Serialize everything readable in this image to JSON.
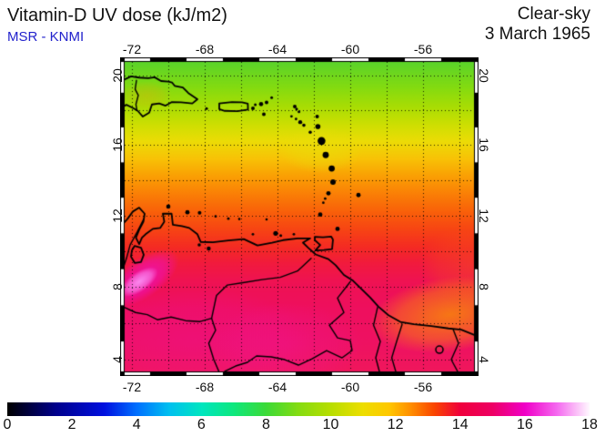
{
  "header": {
    "title": "Vitamin-D UV dose (kJ/m2)",
    "source": "MSR - KNMI",
    "source_color": "#2222cc",
    "condition": "Clear-sky",
    "date": "3 March 1965"
  },
  "map": {
    "lon_min": -72.4,
    "lon_max": -53.2,
    "lat_min": 3.35,
    "lat_max": 20.8,
    "grid_step": 2,
    "grid_color": "#000000",
    "lon_ticks": [
      {
        "lon": -72,
        "label": "-72"
      },
      {
        "lon": -68,
        "label": "-68"
      },
      {
        "lon": -64,
        "label": "-64"
      },
      {
        "lon": -60,
        "label": "-60"
      },
      {
        "lon": -56,
        "label": "-56"
      }
    ],
    "lat_ticks": [
      {
        "lat": 20,
        "label": "20"
      },
      {
        "lat": 16,
        "label": "16"
      },
      {
        "lat": 12,
        "label": "12"
      },
      {
        "lat": 8,
        "label": "8"
      },
      {
        "lat": 4,
        "label": "4"
      }
    ],
    "base_gradient": [
      {
        "lat": 20.8,
        "color": "#5ad32a"
      },
      {
        "lat": 19.3,
        "color": "#84db10"
      },
      {
        "lat": 18.2,
        "color": "#a8dd04"
      },
      {
        "lat": 17.2,
        "color": "#ccdf02"
      },
      {
        "lat": 16.2,
        "color": "#ecdc06"
      },
      {
        "lat": 15.2,
        "color": "#f8c206"
      },
      {
        "lat": 14.2,
        "color": "#fa9f04"
      },
      {
        "lat": 13.2,
        "color": "#fa7f06"
      },
      {
        "lat": 12.2,
        "color": "#f9600a"
      },
      {
        "lat": 11.2,
        "color": "#f74414"
      },
      {
        "lat": 10.2,
        "color": "#f42a24"
      },
      {
        "lat": 9.3,
        "color": "#f11a3e"
      },
      {
        "lat": 8.3,
        "color": "#ef1253"
      },
      {
        "lat": 6.8,
        "color": "#ee0f5e"
      },
      {
        "lat": 5.0,
        "color": "#ee1162"
      },
      {
        "lat": 3.35,
        "color": "#f0175c"
      }
    ],
    "anomalies": [
      {
        "lon": -54.5,
        "lat": 6.5,
        "rx": 4.5,
        "ry": 2.1,
        "tilt": -8,
        "color": "#f8820d",
        "alpha": 0.9
      },
      {
        "lon": -53.4,
        "lat": 9.2,
        "rx": 2.8,
        "ry": 2.2,
        "tilt": 0,
        "color": "#f86014",
        "alpha": 0.35
      },
      {
        "lon": -68.5,
        "lat": 5.0,
        "rx": 6.5,
        "ry": 3.0,
        "tilt": 0,
        "color": "#ef1194",
        "alpha": 0.4
      },
      {
        "lon": -63.5,
        "lat": 4.8,
        "rx": 4.2,
        "ry": 2.4,
        "tilt": 0,
        "color": "#f11595",
        "alpha": 0.4
      },
      {
        "lon": -71.4,
        "lat": 8.5,
        "rx": 2.3,
        "ry": 1.1,
        "tilt": -35,
        "color": "#ef10c0",
        "alpha": 0.85
      },
      {
        "lon": -71.6,
        "lat": 8.3,
        "rx": 1.2,
        "ry": 0.55,
        "tilt": -35,
        "color": "#fb90f2",
        "alpha": 0.95
      },
      {
        "lon": -61.6,
        "lat": 15.7,
        "rx": 2.3,
        "ry": 1.3,
        "tilt": 0,
        "color": "#e9e009",
        "alpha": 0.5
      },
      {
        "lon": -71.2,
        "lat": 18.85,
        "rx": 1.4,
        "ry": 0.8,
        "tilt": 0,
        "color": "#f0a30a",
        "alpha": 0.3
      }
    ],
    "coastlines": [
      {
        "name": "hispaniola",
        "closed": false,
        "points": [
          [
            -72.45,
            19.75
          ],
          [
            -72.05,
            19.95
          ],
          [
            -71.6,
            19.88
          ],
          [
            -71.1,
            19.85
          ],
          [
            -70.75,
            19.9
          ],
          [
            -70.4,
            19.68
          ],
          [
            -70.0,
            19.65
          ],
          [
            -69.8,
            19.6
          ],
          [
            -69.65,
            19.4
          ],
          [
            -69.2,
            19.3
          ],
          [
            -68.9,
            18.98
          ],
          [
            -68.4,
            18.62
          ],
          [
            -68.68,
            18.38
          ],
          [
            -69.3,
            18.44
          ],
          [
            -69.8,
            18.46
          ],
          [
            -70.15,
            18.25
          ],
          [
            -70.5,
            18.38
          ],
          [
            -70.9,
            18.32
          ],
          [
            -71.05,
            17.85
          ],
          [
            -71.4,
            17.62
          ],
          [
            -71.68,
            17.95
          ],
          [
            -71.95,
            18.12
          ],
          [
            -72.3,
            18.3
          ],
          [
            -72.45,
            18.22
          ]
        ]
      },
      {
        "name": "puerto-rico",
        "closed": true,
        "points": [
          [
            -67.2,
            18.38
          ],
          [
            -66.5,
            18.46
          ],
          [
            -65.95,
            18.44
          ],
          [
            -65.63,
            18.36
          ],
          [
            -65.62,
            18.02
          ],
          [
            -66.2,
            17.93
          ],
          [
            -66.9,
            17.95
          ],
          [
            -67.2,
            18.05
          ]
        ]
      },
      {
        "name": "trinidad",
        "closed": true,
        "points": [
          [
            -61.95,
            10.8
          ],
          [
            -61.5,
            10.78
          ],
          [
            -61.05,
            10.82
          ],
          [
            -60.95,
            10.65
          ],
          [
            -61.0,
            10.12
          ],
          [
            -61.45,
            10.07
          ],
          [
            -61.92,
            10.04
          ],
          [
            -61.65,
            10.35
          ],
          [
            -61.95,
            10.62
          ]
        ]
      },
      {
        "name": "south-america",
        "closed": false,
        "points": [
          [
            -72.45,
            11.58
          ],
          [
            -72.25,
            11.8
          ],
          [
            -71.95,
            12.22
          ],
          [
            -71.6,
            12.44
          ],
          [
            -71.3,
            12.1
          ],
          [
            -71.37,
            11.65
          ],
          [
            -71.6,
            11.2
          ],
          [
            -71.78,
            10.75
          ],
          [
            -71.6,
            10.4
          ],
          [
            -71.45,
            10.75
          ],
          [
            -71.25,
            10.95
          ],
          [
            -70.85,
            11.25
          ],
          [
            -70.45,
            11.3
          ],
          [
            -70.22,
            11.65
          ],
          [
            -70.3,
            12.1
          ],
          [
            -69.82,
            12.1
          ],
          [
            -69.75,
            11.48
          ],
          [
            -69.25,
            11.4
          ],
          [
            -68.85,
            11.3
          ],
          [
            -68.4,
            10.95
          ],
          [
            -68.22,
            10.52
          ],
          [
            -67.55,
            10.5
          ],
          [
            -66.7,
            10.6
          ],
          [
            -65.85,
            10.68
          ],
          [
            -65.1,
            10.32
          ],
          [
            -64.3,
            10.48
          ],
          [
            -63.7,
            10.62
          ],
          [
            -62.9,
            10.72
          ],
          [
            -62.2,
            10.72
          ],
          [
            -62.6,
            10.48
          ],
          [
            -62.3,
            10.18
          ],
          [
            -61.9,
            9.82
          ],
          [
            -61.2,
            9.56
          ],
          [
            -60.8,
            9.22
          ],
          [
            -60.35,
            8.68
          ],
          [
            -59.85,
            8.36
          ],
          [
            -59.4,
            7.92
          ],
          [
            -58.9,
            7.42
          ],
          [
            -58.45,
            6.92
          ],
          [
            -57.9,
            6.45
          ],
          [
            -57.25,
            6.08
          ],
          [
            -56.5,
            5.95
          ],
          [
            -55.55,
            5.85
          ],
          [
            -54.6,
            5.72
          ],
          [
            -53.9,
            5.65
          ],
          [
            -53.15,
            5.35
          ]
        ]
      },
      {
        "name": "lake-maracaibo",
        "closed": true,
        "points": [
          [
            -71.85,
            10.3
          ],
          [
            -71.5,
            10.2
          ],
          [
            -71.35,
            9.8
          ],
          [
            -71.5,
            9.4
          ],
          [
            -71.85,
            9.35
          ],
          [
            -72.05,
            9.7
          ],
          [
            -72.0,
            10.05
          ]
        ]
      }
    ],
    "borders": [
      {
        "name": "haiti-dr-border",
        "points": [
          [
            -71.75,
            19.72
          ],
          [
            -71.82,
            19.2
          ],
          [
            -71.65,
            18.85
          ],
          [
            -71.78,
            18.32
          ],
          [
            -71.73,
            18.02
          ]
        ]
      },
      {
        "name": "colombia-venezuela-border",
        "points": [
          [
            -71.35,
            11.8
          ],
          [
            -71.7,
            11.1
          ],
          [
            -72.1,
            10.35
          ],
          [
            -72.3,
            9.6
          ],
          [
            -72.45,
            9.15
          ]
        ]
      },
      {
        "name": "meta-river-border",
        "points": [
          [
            -72.45,
            6.9
          ],
          [
            -71.8,
            6.6
          ],
          [
            -71.15,
            6.48
          ],
          [
            -70.6,
            6.2
          ],
          [
            -69.85,
            6.35
          ],
          [
            -69.05,
            6.15
          ],
          [
            -68.25,
            6.1
          ],
          [
            -67.62,
            6.28
          ],
          [
            -67.4,
            5.62
          ],
          [
            -67.78,
            4.9
          ],
          [
            -67.5,
            4.0
          ],
          [
            -67.2,
            3.3
          ]
        ]
      },
      {
        "name": "orinoco-river",
        "points": [
          [
            -62.15,
            9.6
          ],
          [
            -62.9,
            8.9
          ],
          [
            -63.85,
            8.55
          ],
          [
            -64.85,
            8.42
          ],
          [
            -65.9,
            8.25
          ],
          [
            -66.75,
            8.12
          ],
          [
            -67.35,
            7.55
          ],
          [
            -67.62,
            6.28
          ]
        ]
      },
      {
        "name": "venezuela-guyana-brazil-border",
        "points": [
          [
            -60.0,
            8.3
          ],
          [
            -60.7,
            7.4
          ],
          [
            -60.35,
            6.6
          ],
          [
            -61.15,
            5.9
          ],
          [
            -60.7,
            5.2
          ],
          [
            -60.0,
            5.05
          ],
          [
            -59.9,
            4.5
          ],
          [
            -60.45,
            4.1
          ],
          [
            -61.3,
            4.5
          ],
          [
            -62.1,
            4.05
          ],
          [
            -62.85,
            3.7
          ],
          [
            -63.6,
            4.0
          ],
          [
            -64.35,
            4.15
          ],
          [
            -65.15,
            4.2
          ],
          [
            -65.65,
            3.85
          ],
          [
            -66.3,
            3.65
          ],
          [
            -66.9,
            3.35
          ]
        ]
      },
      {
        "name": "essequibo",
        "points": [
          [
            -58.5,
            6.88
          ],
          [
            -58.72,
            5.9
          ],
          [
            -58.35,
            5.0
          ],
          [
            -58.6,
            4.1
          ],
          [
            -58.4,
            3.35
          ]
        ]
      },
      {
        "name": "corentyne",
        "points": [
          [
            -57.15,
            5.95
          ],
          [
            -57.45,
            5.0
          ],
          [
            -57.72,
            4.1
          ],
          [
            -57.5,
            3.35
          ]
        ]
      },
      {
        "name": "maroni",
        "points": [
          [
            -54.35,
            5.68
          ],
          [
            -54.05,
            4.9
          ],
          [
            -54.45,
            4.0
          ],
          [
            -54.1,
            3.35
          ]
        ]
      }
    ],
    "islands": [
      [
        -67.9,
        18.08,
        1.5
      ],
      [
        -65.35,
        18.1,
        2
      ],
      [
        -65.22,
        18.3,
        1.5
      ],
      [
        -64.9,
        18.34,
        2.3
      ],
      [
        -64.6,
        18.44,
        2
      ],
      [
        -64.32,
        18.72,
        1.5
      ],
      [
        -64.75,
        17.75,
        2
      ],
      [
        -63.05,
        18.2,
        2
      ],
      [
        -62.95,
        18.05,
        1.5
      ],
      [
        -62.82,
        17.9,
        1.5
      ],
      [
        -63.23,
        17.63,
        1.4
      ],
      [
        -62.98,
        17.48,
        1.4
      ],
      [
        -62.75,
        17.3,
        2.2
      ],
      [
        -62.55,
        17.12,
        1.8
      ],
      [
        -61.82,
        17.62,
        2
      ],
      [
        -61.78,
        17.05,
        2.8
      ],
      [
        -62.2,
        16.72,
        1.8
      ],
      [
        -61.58,
        16.22,
        4.3
      ],
      [
        -61.35,
        15.42,
        3.4
      ],
      [
        -61.02,
        14.65,
        3.4
      ],
      [
        -60.95,
        13.88,
        3
      ],
      [
        -61.2,
        13.25,
        2.4
      ],
      [
        -61.38,
        12.95,
        1.4
      ],
      [
        -61.48,
        12.72,
        1.4
      ],
      [
        -59.55,
        13.15,
        2.4
      ],
      [
        -61.65,
        12.05,
        2.4
      ],
      [
        -60.7,
        11.25,
        2.4
      ],
      [
        -70.0,
        12.5,
        2.3
      ],
      [
        -68.95,
        12.18,
        2.4
      ],
      [
        -68.28,
        12.15,
        2
      ],
      [
        -67.4,
        11.95,
        1.4
      ],
      [
        -66.7,
        11.82,
        1.4
      ],
      [
        -66.1,
        11.8,
        1.3
      ],
      [
        -65.35,
        10.95,
        1.4
      ],
      [
        -64.6,
        11.78,
        1.3
      ],
      [
        -64.1,
        11.0,
        2.6
      ],
      [
        -63.82,
        10.88,
        1.5
      ],
      [
        -63.1,
        10.95,
        1.4
      ],
      [
        -68.3,
        10.35,
        1.8
      ],
      [
        -67.78,
        10.15,
        2.2
      ]
    ],
    "small_lakes": [
      [
        -55.1,
        4.55,
        4
      ]
    ]
  },
  "colorbar": {
    "min": 0,
    "max": 18,
    "ticks": [
      {
        "v": 0,
        "label": "0"
      },
      {
        "v": 2,
        "label": "2"
      },
      {
        "v": 4,
        "label": "4"
      },
      {
        "v": 6,
        "label": "6"
      },
      {
        "v": 8,
        "label": "8"
      },
      {
        "v": 10,
        "label": "10"
      },
      {
        "v": 12,
        "label": "12"
      },
      {
        "v": 14,
        "label": "14"
      },
      {
        "v": 16,
        "label": "16"
      },
      {
        "v": 18,
        "label": "18"
      }
    ],
    "stops": [
      [
        0,
        "#000000"
      ],
      [
        1.5,
        "#00008c"
      ],
      [
        3,
        "#0010e0"
      ],
      [
        4,
        "#0070ff"
      ],
      [
        5,
        "#00c0f0"
      ],
      [
        6,
        "#00e6c0"
      ],
      [
        7,
        "#0ee87e"
      ],
      [
        8,
        "#3cda38"
      ],
      [
        9,
        "#85dc12"
      ],
      [
        10,
        "#b8de00"
      ],
      [
        11,
        "#eede00"
      ],
      [
        11.8,
        "#ffc800"
      ],
      [
        12.5,
        "#ff8c00"
      ],
      [
        13.2,
        "#fa4600"
      ],
      [
        14,
        "#f0003c"
      ],
      [
        15,
        "#ee0064"
      ],
      [
        16,
        "#f000c8"
      ],
      [
        17,
        "#f56af0"
      ],
      [
        17.6,
        "#fbc0f8"
      ],
      [
        18,
        "#fff8ff"
      ]
    ]
  }
}
